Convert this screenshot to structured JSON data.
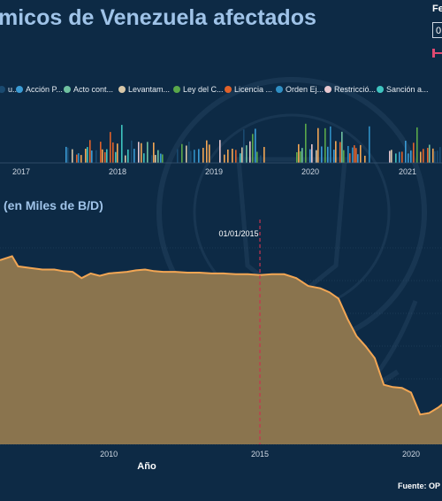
{
  "header": {
    "title": "micos de Venezuela afectados",
    "filter_label": "Fe",
    "filter_value": "0",
    "slider_color": "#e04a72"
  },
  "legend": {
    "items": [
      {
        "label": "u...",
        "color": "#1a4a70"
      },
      {
        "label": "Acción P...",
        "color": "#3a9bd5"
      },
      {
        "label": "Acto cont...",
        "color": "#6fc1a0"
      },
      {
        "label": "Levantam...",
        "color": "#d8c7a8"
      },
      {
        "label": "Ley del C...",
        "color": "#5aa84a"
      },
      {
        "label": "Licencia ...",
        "color": "#e0622a"
      },
      {
        "label": "Orden Ej...",
        "color": "#2f8fc4"
      },
      {
        "label": "Restricció...",
        "color": "#e8c8d0"
      },
      {
        "label": "Sanción a...",
        "color": "#3ec4c0"
      }
    ]
  },
  "sanctions_chart": {
    "x_ticks": [
      "2017",
      "2018",
      "2019",
      "2020",
      "2021"
    ]
  },
  "production_chart": {
    "section_label": "(en Miles de B/D)",
    "x_label": "Año",
    "x_ticks": [
      "2010",
      "2015",
      "2020"
    ],
    "marker_label": "01/01/2015",
    "line_color": "#f2a654",
    "area_color": "#8a744e",
    "marker_color": "#c8344f"
  },
  "footer": {
    "source": "Fuente: OP"
  },
  "chart_data": {
    "type": "area",
    "x": [
      2006.4,
      2006.8,
      2007.0,
      2007.4,
      2007.8,
      2008.2,
      2008.5,
      2008.8,
      2009.1,
      2009.4,
      2009.7,
      2010.0,
      2010.3,
      2010.6,
      2010.9,
      2011.2,
      2011.5,
      2011.8,
      2012.2,
      2012.6,
      2013.0,
      2013.4,
      2013.8,
      2014.2,
      2014.6,
      2015.0,
      2015.4,
      2015.8,
      2016.2,
      2016.6,
      2017.0,
      2017.3,
      2017.6,
      2017.9,
      2018.2,
      2018.5,
      2018.8,
      2019.1,
      2019.4,
      2019.7,
      2020.0,
      2020.3,
      2020.6,
      2020.9,
      2021.2
    ],
    "y": [
      2350,
      2400,
      2270,
      2250,
      2230,
      2230,
      2210,
      2200,
      2120,
      2180,
      2150,
      2180,
      2190,
      2200,
      2220,
      2230,
      2210,
      2200,
      2200,
      2190,
      2190,
      2180,
      2180,
      2170,
      2170,
      2160,
      2170,
      2170,
      2120,
      2020,
      1990,
      1940,
      1860,
      1600,
      1380,
      1250,
      1100,
      760,
      730,
      720,
      660,
      380,
      400,
      470,
      560
    ],
    "xlim": [
      2006.4,
      2021.2
    ],
    "marker_x": 2015.0
  }
}
